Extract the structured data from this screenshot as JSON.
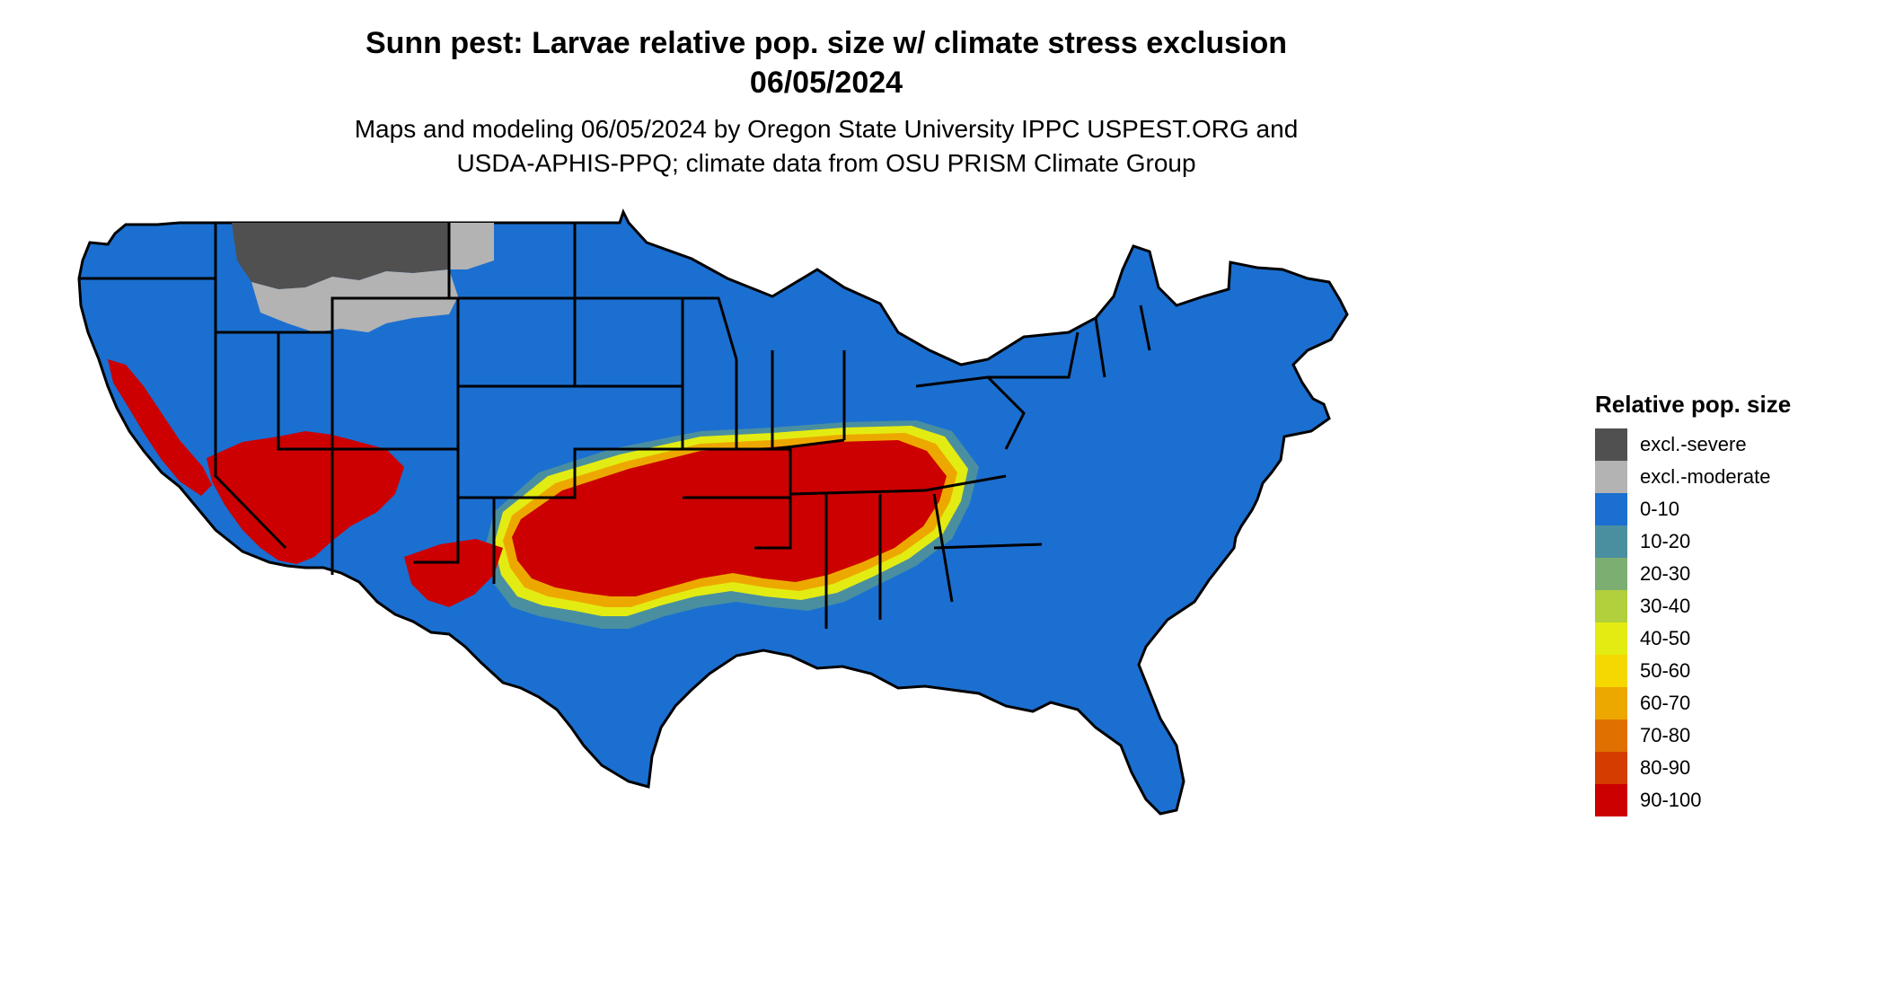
{
  "title_line1": "Sunn pest: Larvae relative pop. size w/ climate stress exclusion",
  "title_line2": "06/05/2024",
  "subtitle_line1": "Maps and modeling 06/05/2024 by Oregon State University IPPC USPEST.ORG and",
  "subtitle_line2": "USDA-APHIS-PPQ; climate data from OSU PRISM Climate Group",
  "legend": {
    "title": "Relative pop. size",
    "items": [
      {
        "label": "excl.-severe",
        "color": "#505050"
      },
      {
        "label": "excl.-moderate",
        "color": "#b3b3b3"
      },
      {
        "label": "0-10",
        "color": "#1b6fd0"
      },
      {
        "label": "10-20",
        "color": "#4a8fa0"
      },
      {
        "label": "20-30",
        "color": "#7cae72"
      },
      {
        "label": "30-40",
        "color": "#b2cf3c"
      },
      {
        "label": "40-50",
        "color": "#e3ec12"
      },
      {
        "label": "50-60",
        "color": "#f5d800"
      },
      {
        "label": "60-70",
        "color": "#eda800"
      },
      {
        "label": "70-80",
        "color": "#e07000"
      },
      {
        "label": "80-90",
        "color": "#d43c00"
      },
      {
        "label": "90-100",
        "color": "#cc0000"
      }
    ]
  },
  "map": {
    "base_color": "#1b6fd0",
    "border_color": "#000000"
  }
}
